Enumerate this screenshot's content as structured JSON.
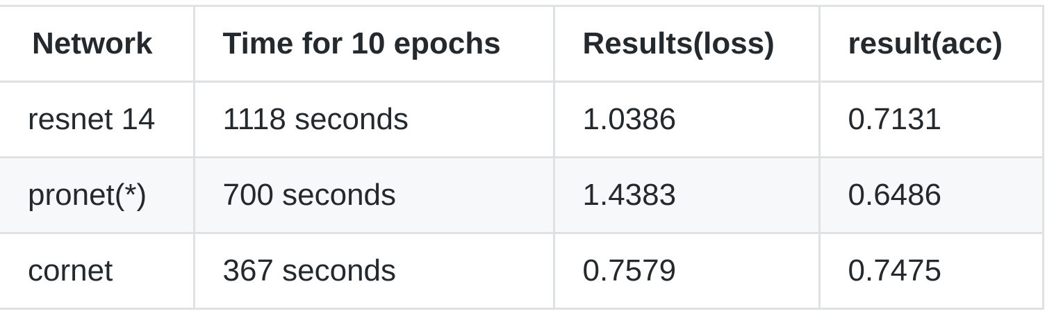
{
  "table": {
    "headers": [
      "Network",
      "Time for 10 epochs",
      "Results(loss)",
      "result(acc)"
    ],
    "rows": [
      [
        "resnet 14",
        "1118 seconds",
        "1.0386",
        "0.7131"
      ],
      [
        "pronet(*)",
        "700 seconds",
        "1.4383",
        "0.6486"
      ],
      [
        "cornet",
        "367 seconds",
        "0.7579",
        "0.7475"
      ]
    ]
  },
  "colors": {
    "border": "#dfe2e5",
    "alt_row_background": "#f6f8fa",
    "text": "#24292e"
  }
}
